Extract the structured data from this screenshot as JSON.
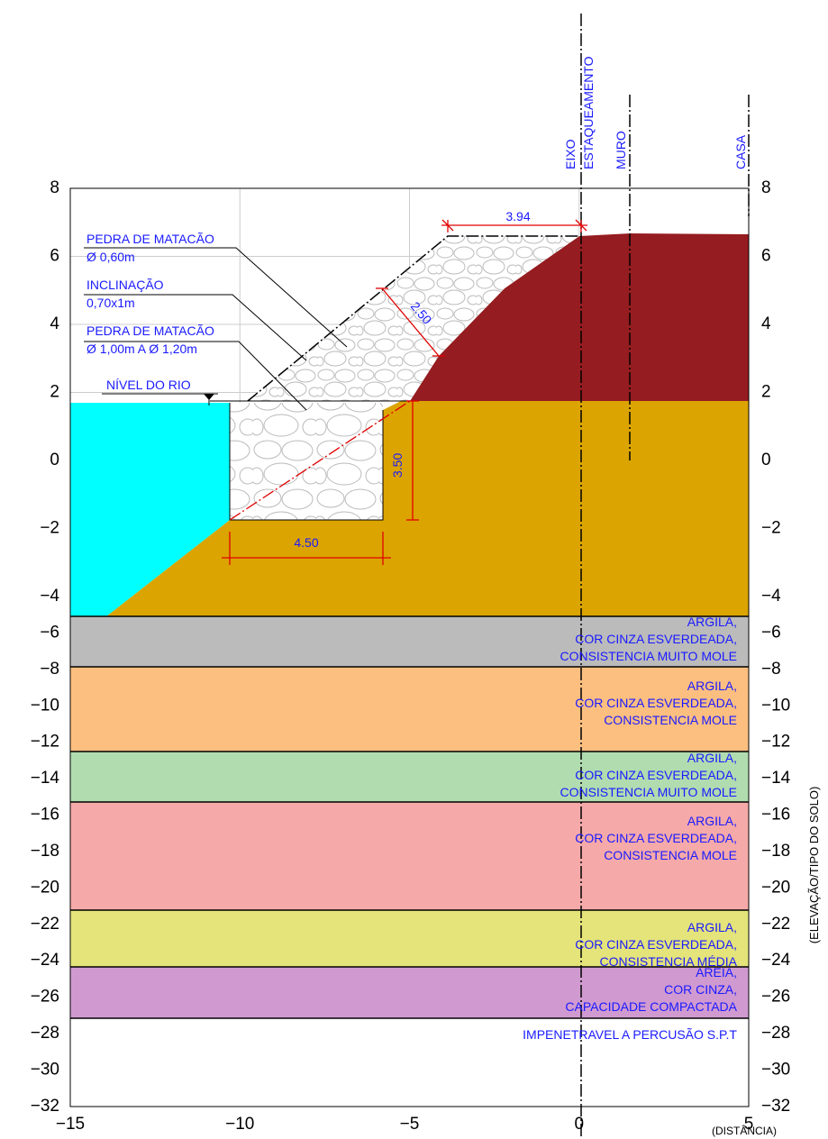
{
  "axes": {
    "xticks": [
      {
        "value": -15,
        "label": "−15"
      },
      {
        "value": -10,
        "label": "−10"
      },
      {
        "value": -5,
        "label": "−5"
      },
      0,
      5
    ],
    "yticks": [
      8,
      6,
      4,
      2,
      0,
      {
        "value": -2,
        "label": "−2"
      },
      {
        "value": -4,
        "label": "−4"
      },
      {
        "value": -6,
        "label": "−6"
      },
      {
        "value": -8,
        "label": "−8"
      },
      {
        "value": -10,
        "label": "−10"
      },
      {
        "value": -12,
        "label": "−12"
      },
      {
        "value": -14,
        "label": "−14"
      },
      {
        "value": -16,
        "label": "−16"
      },
      {
        "value": -18,
        "label": "−18"
      },
      {
        "value": -20,
        "label": "−20"
      },
      {
        "value": -22,
        "label": "−22"
      },
      {
        "value": -24,
        "label": "−24"
      },
      {
        "value": -26,
        "label": "−26"
      },
      {
        "value": -28,
        "label": "−28"
      },
      {
        "value": -30,
        "label": "−30"
      },
      {
        "value": -32,
        "label": "−32"
      }
    ],
    "x_label": "(DISTÂNCIA)",
    "y_label": "(ELEVAÇÃO/TIPO DO SOLO)"
  },
  "annotations": [
    {
      "lines": [
        "PEDRA DE MATACÃO",
        "Ø 0,60m"
      ]
    },
    {
      "lines": [
        "INCLINAÇÃO",
        "0,70x1m"
      ]
    },
    {
      "lines": [
        "PEDRA DE MATACÃO",
        "Ø 1,00m  A Ø 1,20m"
      ]
    },
    {
      "lines": [
        "NÍVEL DO RIO"
      ]
    }
  ],
  "columns": [
    "EIXO",
    "ESTAQUEAMENTO",
    "MURO",
    "CASA"
  ],
  "dimensions": [
    "3.94",
    "2.50",
    "3.50",
    "4.50"
  ],
  "layers": [
    {
      "lines": [
        "ARGILA,",
        "COR CINZA ESVERDEADA,",
        "CONSISTENCIA MUITO MOLE"
      ]
    },
    {
      "lines": [
        "ARGILA,",
        "COR CINZA ESVERDEADA,",
        "CONSISTENCIA MOLE"
      ]
    },
    {
      "lines": [
        "ARGILA,",
        "COR CINZA ESVERDEADA,",
        "CONSISTENCIA MUITO MOLE"
      ]
    },
    {
      "lines": [
        "ARGILA,",
        "COR CINZA ESVERDEADA,",
        "CONSISTENCIA MOLE"
      ]
    },
    {
      "lines": [
        "ARGILA,",
        "COR CINZA ESVERDEADA,",
        "CONSISTENCIA MÉDIA"
      ]
    },
    {
      "lines": [
        "AREIA,",
        "COR CINZA,",
        "CAPACIDADE COMPACTADA"
      ]
    }
  ],
  "bottom_note": "IMPENETRAVEL A PERCUSÃO S.P.T"
}
